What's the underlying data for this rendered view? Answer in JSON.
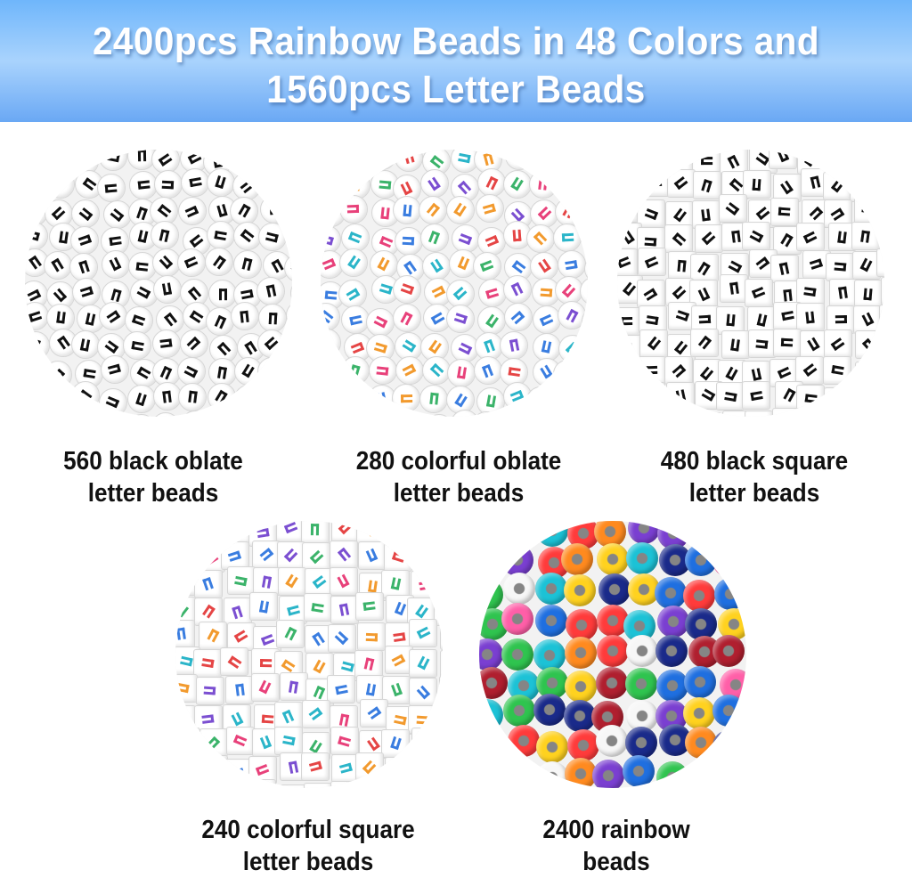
{
  "title": {
    "line1": "2400pcs Rainbow Beads in 48 Colors and",
    "line2": "1560pcs Letter Beads"
  },
  "colors": {
    "header_top": "#6fb6fb",
    "header_mid": "#a9d3fd",
    "header_bottom": "#6aa8f4",
    "text": "#111111"
  },
  "products": [
    {
      "line1": "560 black oblate",
      "line2": "letter beads",
      "image": "black-oblate-letter-beads"
    },
    {
      "line1": "280 colorful oblate",
      "line2": "letter beads",
      "image": "colorful-oblate-letter-beads"
    },
    {
      "line1": "480 black square",
      "line2": "letter beads",
      "image": "black-square-letter-beads"
    },
    {
      "line1": "240 colorful square",
      "line2": "letter beads",
      "image": "colorful-square-letter-beads"
    },
    {
      "line1": "2400 rainbow",
      "line2": "beads",
      "image": "rainbow-pony-beads"
    }
  ]
}
